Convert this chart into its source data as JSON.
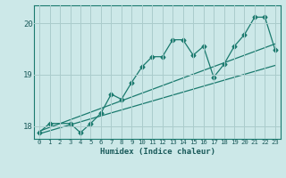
{
  "xlabel": "Humidex (Indice chaleur)",
  "bg_color": "#cce8e8",
  "grid_color": "#aacccc",
  "line_color": "#1a7a6e",
  "xlim": [
    -0.5,
    23.5
  ],
  "ylim": [
    17.75,
    20.35
  ],
  "yticks": [
    18,
    19,
    20
  ],
  "xticks": [
    0,
    1,
    2,
    3,
    4,
    5,
    6,
    7,
    8,
    9,
    10,
    11,
    12,
    13,
    14,
    15,
    16,
    17,
    18,
    19,
    20,
    21,
    22,
    23
  ],
  "series1_x": [
    0,
    1,
    3,
    4,
    5,
    6,
    7,
    8,
    9,
    10,
    11,
    12,
    13,
    14,
    15,
    16,
    17,
    18,
    19,
    20,
    21,
    22,
    23
  ],
  "series1_y": [
    17.88,
    18.05,
    18.05,
    17.87,
    18.05,
    18.25,
    18.62,
    18.52,
    18.85,
    19.15,
    19.35,
    19.35,
    19.68,
    19.68,
    19.38,
    19.55,
    18.95,
    19.2,
    19.55,
    19.78,
    20.12,
    20.12,
    19.48
  ],
  "series2_x": [
    0,
    23
  ],
  "series2_y": [
    17.9,
    19.6
  ],
  "series3_x": [
    0,
    23
  ],
  "series3_y": [
    17.85,
    19.18
  ],
  "marker": "D",
  "markersize": 2.5,
  "linewidth": 0.9
}
